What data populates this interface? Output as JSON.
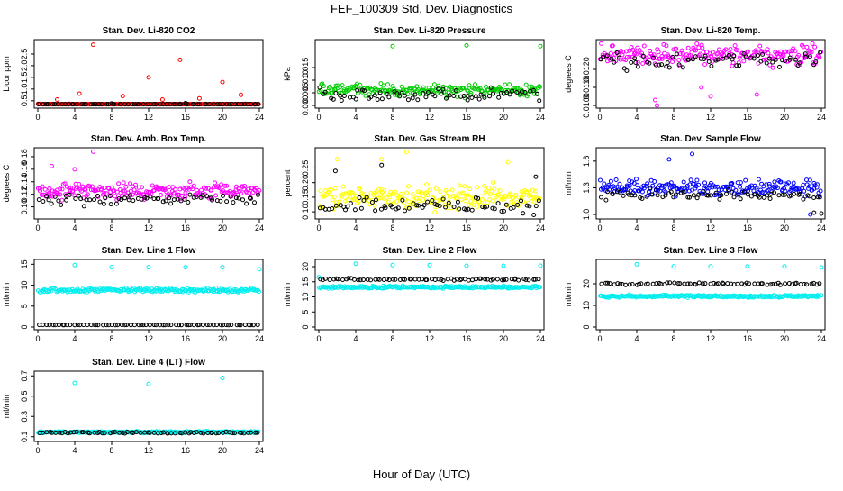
{
  "page": {
    "title": "FEF_100309  Std. Dev. Diagnostics",
    "xlabel": "Hour of Day (UTC)"
  },
  "chart_data": [
    {
      "type": "scatter",
      "title": "Stan. Dev. Li-820 CO2",
      "ylabel": "Licor ppm",
      "xlim": [
        0,
        24
      ],
      "xticks": [
        "0",
        "4",
        "8",
        "12",
        "16",
        "20",
        "24"
      ],
      "ylim": [
        0.3,
        3.0
      ],
      "yticks": [
        "0.5",
        "1.0",
        "1.5",
        "2.0",
        "2.5"
      ],
      "series": [
        {
          "color": "#ff0000",
          "baseline": 0.33,
          "spread": 0.05,
          "points": [
            [
              6.0,
              2.9
            ],
            [
              15.4,
              2.25
            ],
            [
              12.0,
              1.5
            ],
            [
              20.0,
              1.3
            ],
            [
              4.5,
              0.8
            ],
            [
              9.2,
              0.7
            ],
            [
              17.5,
              0.6
            ],
            [
              22.0,
              0.75
            ],
            [
              2.1,
              0.55
            ],
            [
              13.5,
              0.55
            ]
          ]
        },
        {
          "color": "#000000",
          "baseline": 0.32,
          "spread": 0.04,
          "points": [
            [
              8.0,
              0.38
            ],
            [
              16.0,
              0.4
            ],
            [
              23.5,
              0.35
            ]
          ]
        }
      ]
    },
    {
      "type": "scatter",
      "title": "Stan. Dev. Li-820 Pressure",
      "ylabel": "kPa",
      "xlim": [
        0,
        24
      ],
      "xticks": [
        "0",
        "4",
        "8",
        "12",
        "16",
        "20",
        "24"
      ],
      "ylim": [
        0.0,
        0.025
      ],
      "yticks": [
        "0.000",
        "0.005",
        "0.010",
        "0.015"
      ],
      "series": [
        {
          "color": "#00cc00",
          "baseline": 0.006,
          "spread": 0.0035,
          "points": [
            [
              8.0,
              0.0235
            ],
            [
              16.0,
              0.0238
            ],
            [
              24.0,
              0.0235
            ]
          ]
        },
        {
          "color": "#000000",
          "baseline": 0.004,
          "spread": 0.0035,
          "points": []
        }
      ]
    },
    {
      "type": "scatter",
      "title": "Stan. Dev. Li-820 Temp.",
      "ylabel": "degrees C",
      "xlim": [
        0,
        24
      ],
      "xticks": [
        "0",
        "4",
        "8",
        "12",
        "16",
        "20",
        "24"
      ],
      "ylim": [
        0.01,
        0.0135
      ],
      "yticks": [
        "0.0100",
        "0.0110",
        "0.0120"
      ],
      "series": [
        {
          "color": "#ff00ff",
          "baseline": 0.0128,
          "spread": 0.0008,
          "points": [
            [
              6.2,
              0.01
            ],
            [
              6.0,
              0.0103
            ],
            [
              12.0,
              0.0105
            ],
            [
              17.0,
              0.0106
            ],
            [
              11.0,
              0.011
            ]
          ]
        },
        {
          "color": "#000000",
          "baseline": 0.0125,
          "spread": 0.0007,
          "points": []
        }
      ]
    },
    {
      "type": "scatter",
      "title": "Stan. Dev. Amb. Box Temp.",
      "ylabel": "degrees C",
      "xlim": [
        0,
        24
      ],
      "xticks": [
        "0",
        "4",
        "8",
        "12",
        "16",
        "20",
        "24"
      ],
      "ylim": [
        0.085,
        0.19
      ],
      "yticks": [
        "0.10",
        "0.12",
        "0.14",
        "0.16",
        "0.18"
      ],
      "series": [
        {
          "color": "#ff00ff",
          "baseline": 0.125,
          "spread": 0.018,
          "points": [
            [
              6.0,
              0.188
            ],
            [
              1.5,
              0.165
            ],
            [
              4.0,
              0.16
            ]
          ]
        },
        {
          "color": "#000000",
          "baseline": 0.112,
          "spread": 0.013,
          "points": []
        }
      ]
    },
    {
      "type": "scatter",
      "title": "Stan. Dev. Gas Stream RH",
      "ylabel": "percent",
      "xlim": [
        0,
        24
      ],
      "xticks": [
        "0",
        "4",
        "8",
        "12",
        "16",
        "20",
        "24"
      ],
      "ylim": [
        0.085,
        0.31
      ],
      "yticks": [
        "0.10",
        "0.15",
        "0.20",
        "0.25"
      ],
      "series": [
        {
          "color": "#ffff00",
          "baseline": 0.15,
          "spread": 0.055,
          "points": [
            [
              9.5,
              0.305
            ],
            [
              2.0,
              0.28
            ],
            [
              6.8,
              0.28
            ],
            [
              20.5,
              0.27
            ]
          ]
        },
        {
          "color": "#000000",
          "baseline": 0.12,
          "spread": 0.04,
          "points": [
            [
              1.8,
              0.24
            ],
            [
              6.8,
              0.26
            ],
            [
              23.5,
              0.22
            ]
          ]
        }
      ]
    },
    {
      "type": "scatter",
      "title": "Stan. Dev. Sample Flow",
      "ylabel": "ml/min",
      "xlim": [
        0,
        24
      ],
      "xticks": [
        "0",
        "4",
        "8",
        "12",
        "16",
        "20",
        "24"
      ],
      "ylim": [
        0.98,
        1.72
      ],
      "yticks": [
        "1.0",
        "1.3",
        "1.6"
      ],
      "series": [
        {
          "color": "#0000ff",
          "baseline": 1.3,
          "spread": 0.13,
          "points": [
            [
              10.0,
              1.68
            ],
            [
              7.5,
              1.62
            ],
            [
              22.8,
              1.0
            ]
          ]
        },
        {
          "color": "#000000",
          "baseline": 1.22,
          "spread": 0.09,
          "points": [
            [
              23.2,
              1.02
            ],
            [
              24.0,
              1.01
            ]
          ]
        }
      ]
    },
    {
      "type": "scatter",
      "title": "Stan. Dev. Line 1 Flow",
      "ylabel": "ml/min",
      "xlim": [
        0,
        24
      ],
      "xticks": [
        "0",
        "4",
        "8",
        "12",
        "16",
        "20",
        "24"
      ],
      "ylim": [
        0,
        15.5
      ],
      "yticks": [
        "0",
        "5",
        "10",
        "15"
      ],
      "series": [
        {
          "color": "#00eeee",
          "baseline": 8.8,
          "spread": 0.7,
          "points": [
            [
              4.0,
              14.8
            ],
            [
              8.0,
              14.3
            ],
            [
              12.0,
              14.3
            ],
            [
              16.0,
              14.3
            ],
            [
              20.0,
              14.3
            ],
            [
              24.0,
              13.8
            ]
          ]
        },
        {
          "color": "#000000",
          "baseline": 0.5,
          "spread": 0.05,
          "points": []
        }
      ]
    },
    {
      "type": "scatter",
      "title": "Stan. Dev. Line 2 Flow",
      "ylabel": "ml/min",
      "xlim": [
        0,
        24
      ],
      "xticks": [
        "0",
        "4",
        "8",
        "12",
        "16",
        "20",
        "24"
      ],
      "ylim": [
        0,
        21.5
      ],
      "yticks": [
        "0",
        "5",
        "10",
        "15",
        "20"
      ],
      "series": [
        {
          "color": "#00eeee",
          "baseline": 13.2,
          "spread": 0.6,
          "points": [
            [
              4.0,
              21.0
            ],
            [
              8.0,
              20.5
            ],
            [
              12.0,
              20.5
            ],
            [
              16.0,
              20.3
            ],
            [
              20.0,
              20.3
            ],
            [
              24.0,
              20.3
            ],
            [
              0.0,
              16.5
            ]
          ]
        },
        {
          "color": "#000000",
          "baseline": 15.8,
          "spread": 0.5,
          "points": []
        }
      ]
    },
    {
      "type": "scatter",
      "title": "Stan. Dev. Line 3 Flow",
      "ylabel": "ml/min",
      "xlim": [
        0,
        24
      ],
      "xticks": [
        "0",
        "4",
        "8",
        "12",
        "16",
        "20",
        "24"
      ],
      "ylim": [
        0,
        30
      ],
      "yticks": [
        "0",
        "10",
        "20"
      ],
      "series": [
        {
          "color": "#00eeee",
          "baseline": 14.2,
          "spread": 0.8,
          "points": [
            [
              4.0,
              29.0
            ],
            [
              8.0,
              28.0
            ],
            [
              12.0,
              28.0
            ],
            [
              16.0,
              28.0
            ],
            [
              20.0,
              28.0
            ],
            [
              24.0,
              27.5
            ]
          ]
        },
        {
          "color": "#000000",
          "baseline": 20.0,
          "spread": 0.8,
          "points": []
        }
      ]
    },
    {
      "type": "scatter",
      "title": "Stan. Dev. Line 4 (LT) Flow",
      "ylabel": "ml/min",
      "xlim": [
        0,
        24
      ],
      "xticks": [
        "0",
        "4",
        "8",
        "12",
        "16",
        "20",
        "24"
      ],
      "ylim": [
        0.08,
        0.72
      ],
      "yticks": [
        "0.1",
        "0.3",
        "0.5",
        "0.7"
      ],
      "series": [
        {
          "color": "#00eeee",
          "baseline": 0.145,
          "spread": 0.012,
          "points": [
            [
              4.0,
              0.63
            ],
            [
              12.0,
              0.62
            ],
            [
              20.0,
              0.68
            ]
          ]
        },
        {
          "color": "#000000",
          "baseline": 0.14,
          "spread": 0.012,
          "points": []
        }
      ]
    }
  ]
}
